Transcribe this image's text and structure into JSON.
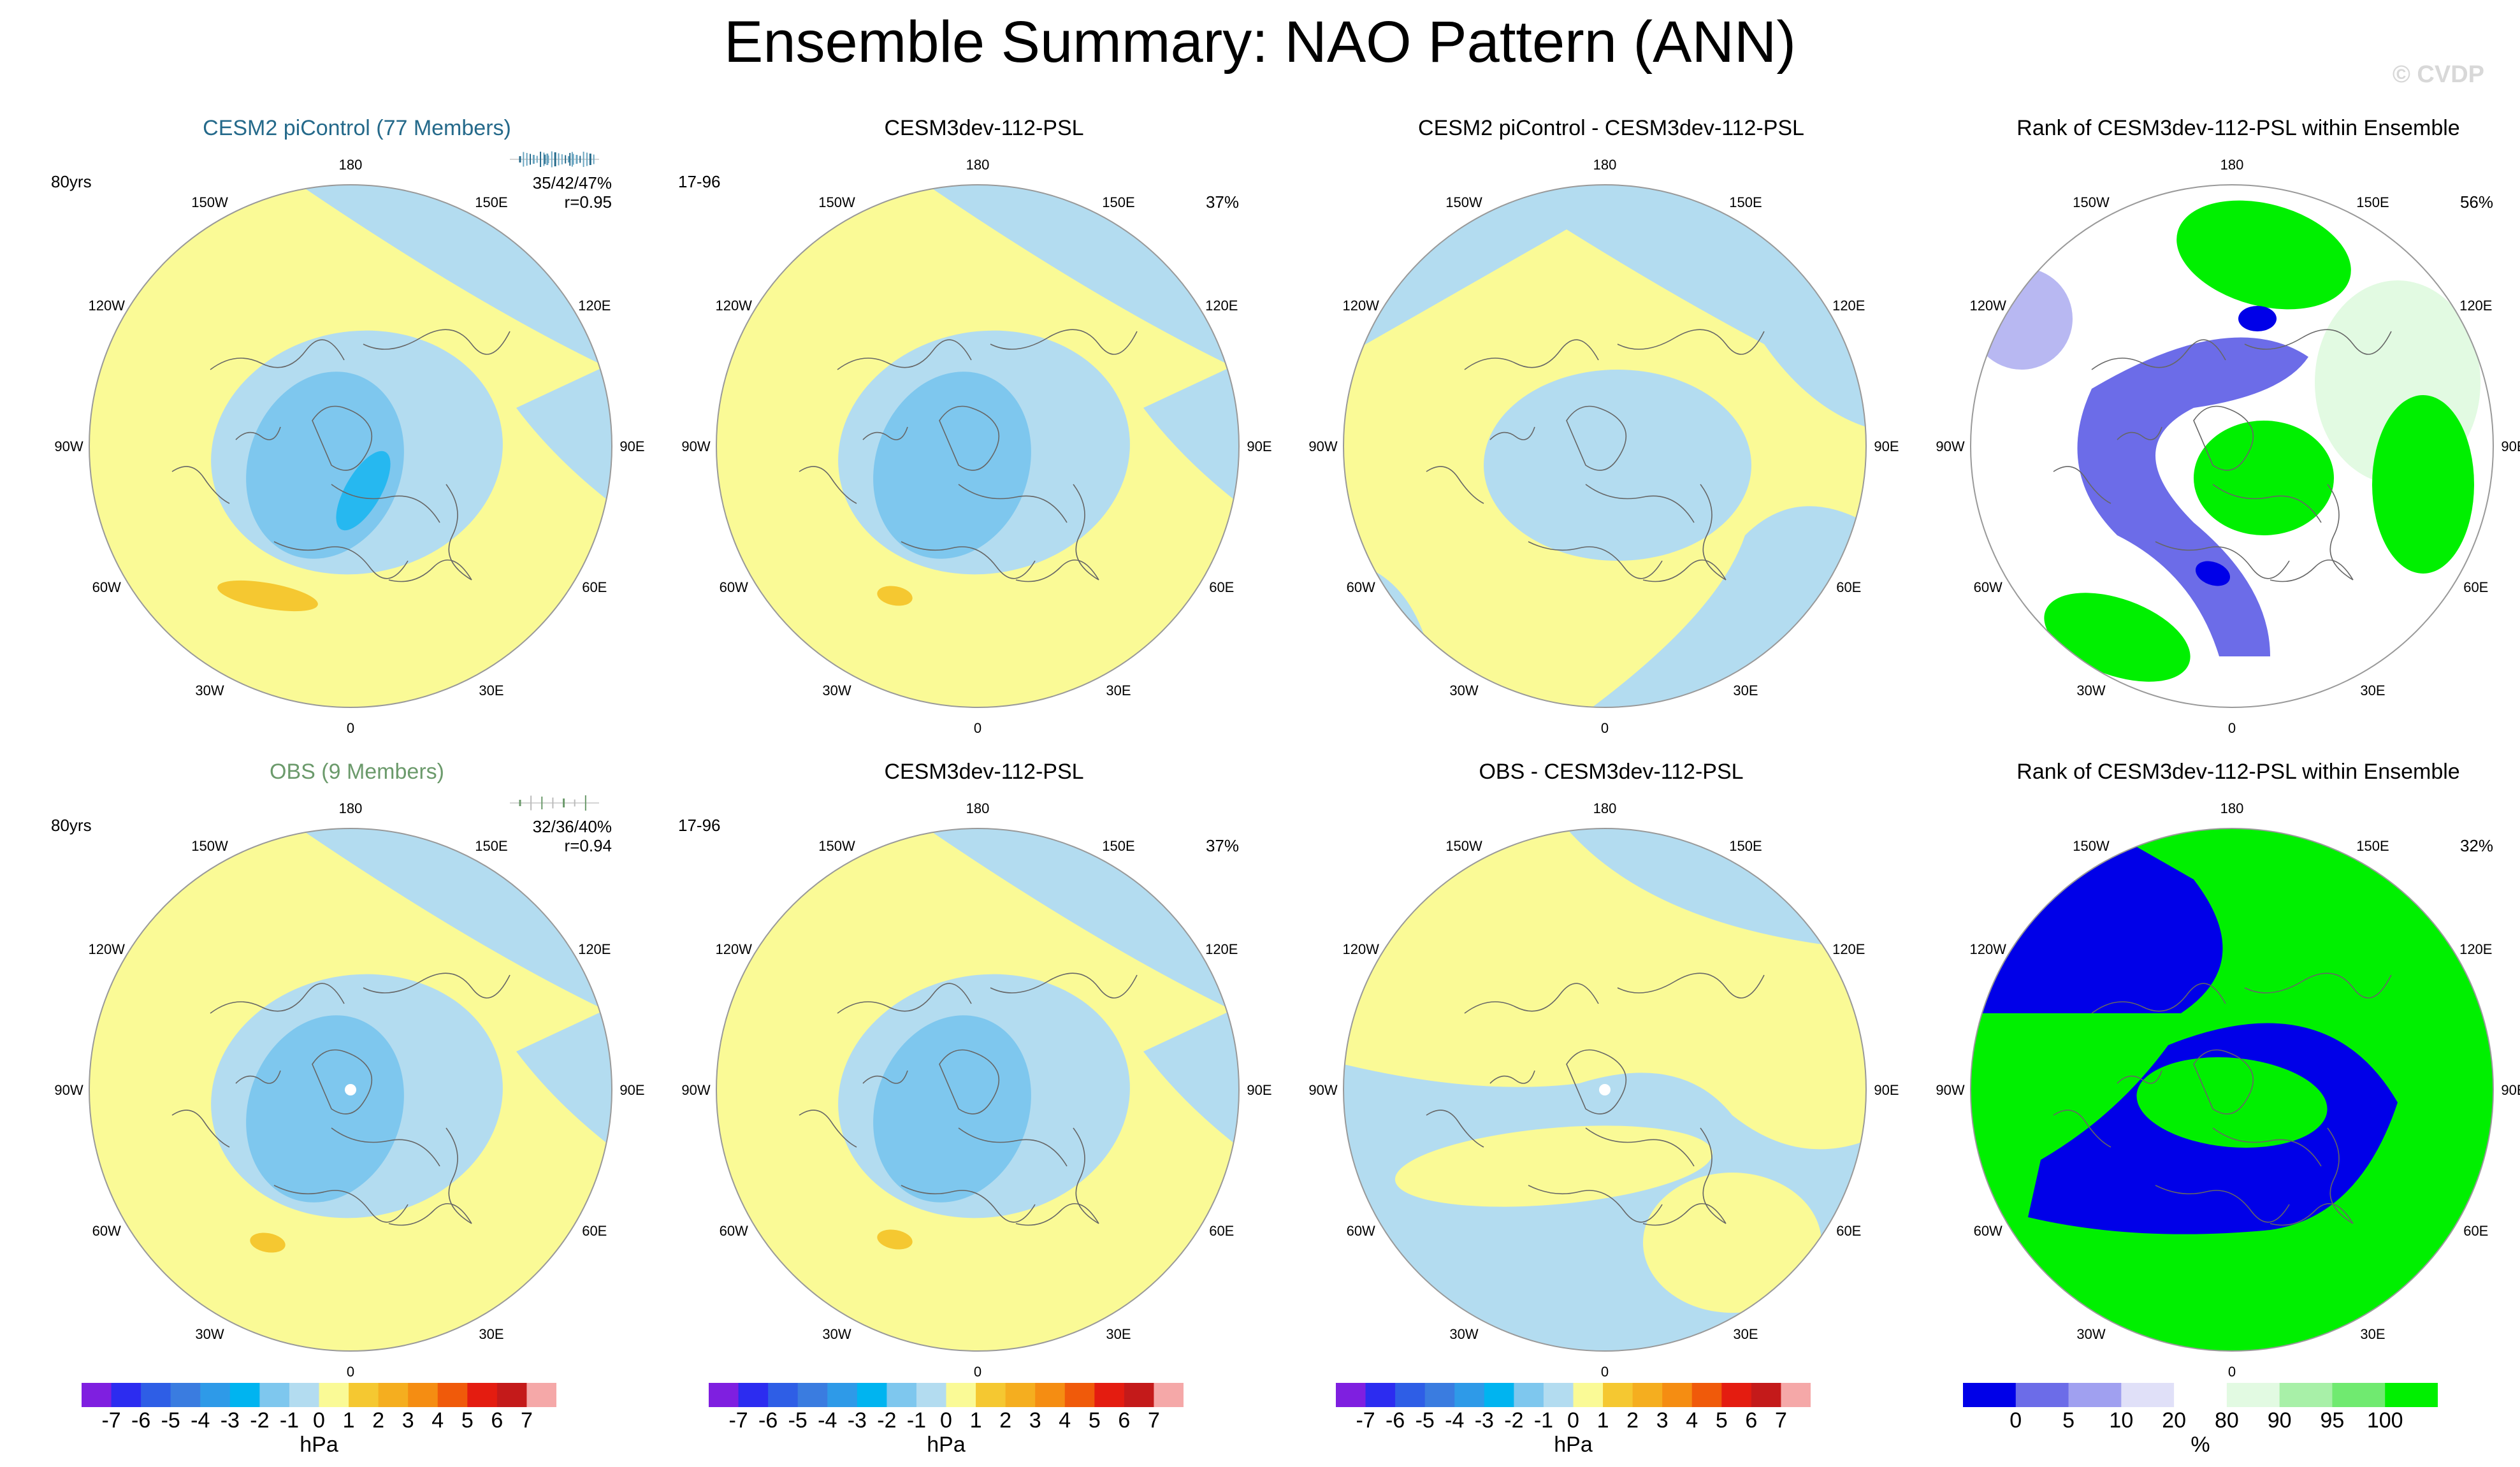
{
  "title": "Ensemble Summary: NAO Pattern (ANN)",
  "copyright": "© CVDP",
  "colors": {
    "neg1": "#b3dcf0",
    "neg2": "#7ec7ee",
    "neg3": "#26b8f0",
    "pos1": "#fafa96",
    "pos2": "#f5c831",
    "rank_dark": "#0000e8",
    "rank_mid": "#6c6ce8",
    "rank_light": "#b8b8f2",
    "rank_pale": "#e2e2f8",
    "rank_green_pale": "#e2fae2",
    "rank_green": "#00f000",
    "rank_green_mid": "#88ee88"
  },
  "panels": [
    {
      "id": "p1",
      "title": "CESM2 piControl (77 Members)",
      "title_color": "#24698a",
      "left_label": "80yrs",
      "right_label": "35/42/47%",
      "right_label2": "r=0.95",
      "type": "ens"
    },
    {
      "id": "p2",
      "title": "CESM3dev-112-PSL",
      "left_label": "17-96",
      "right_label": "37%",
      "type": "model"
    },
    {
      "id": "p3",
      "title": "CESM2 piControl - CESM3dev-112-PSL",
      "type": "diff1"
    },
    {
      "id": "p4",
      "title": "Rank of CESM3dev-112-PSL within Ensemble",
      "right_label": "56%",
      "type": "rank1"
    },
    {
      "id": "p5",
      "title": "OBS (9 Members)",
      "title_color": "#6b9a6b",
      "left_label": "80yrs",
      "right_label": "32/36/40%",
      "right_label2": "r=0.94",
      "type": "obs"
    },
    {
      "id": "p6",
      "title": "CESM3dev-112-PSL",
      "left_label": "17-96",
      "right_label": "37%",
      "type": "model"
    },
    {
      "id": "p7",
      "title": "OBS - CESM3dev-112-PSL",
      "type": "diff2"
    },
    {
      "id": "p8",
      "title": "Rank of CESM3dev-112-PSL within Ensemble",
      "right_label": "32%",
      "type": "rank2"
    }
  ],
  "lon_labels": [
    "180",
    "150E",
    "120E",
    "90E",
    "60E",
    "30E",
    "0",
    "30W",
    "60W",
    "90W",
    "120W",
    "150W"
  ],
  "hpa_colorbar": {
    "unit": "hPa",
    "ticks": [
      "-7",
      "-6",
      "-5",
      "-4",
      "-3",
      "-2",
      "-1",
      "0",
      "1",
      "2",
      "3",
      "4",
      "5",
      "6",
      "7"
    ],
    "colors": [
      "#7f1fe0",
      "#2c2cf0",
      "#2e5ee6",
      "#3a7ce0",
      "#2e9ae8",
      "#00b4f0",
      "#7ec7ee",
      "#b3dcf0",
      "#fafa96",
      "#f5c831",
      "#f5ae1f",
      "#f58d12",
      "#f05a0a",
      "#e41c10",
      "#c41a1a",
      "#f5a8a8"
    ]
  },
  "rank_colorbar": {
    "unit": "%",
    "ticks": [
      "0",
      "5",
      "10",
      "20",
      "80",
      "90",
      "95",
      "100"
    ],
    "colors": [
      "#0000e8",
      "#6c6ce8",
      "#a0a0f0",
      "#e0e0f8",
      "#ffffff",
      "#e2fae2",
      "#a8f0a8",
      "#70ea70",
      "#00f000"
    ]
  }
}
